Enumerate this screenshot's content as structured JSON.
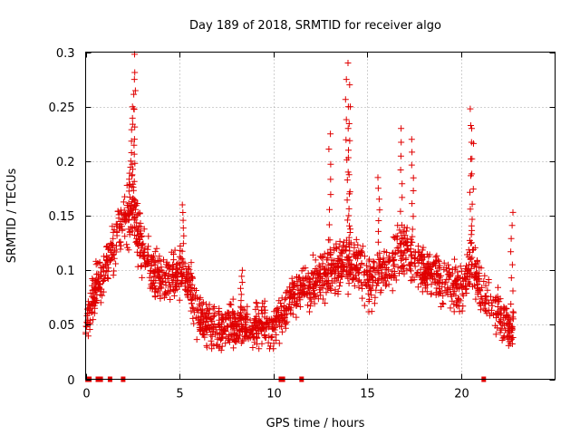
{
  "chart_data": {
    "type": "scatter",
    "title": "Day 189 of 2018, SRMTID for receiver algo",
    "xlabel": "GPS time / hours",
    "ylabel": "SRMTID / TECUs",
    "xlim": [
      0,
      25
    ],
    "ylim": [
      0,
      0.3
    ],
    "xticks": [
      0,
      5,
      10,
      15,
      20
    ],
    "xtick_labels": [
      "0",
      "5",
      "10",
      "15",
      "20"
    ],
    "yticks": [
      0,
      0.05,
      0.1,
      0.15,
      0.2,
      0.25,
      0.3
    ],
    "ytick_labels": [
      "0",
      "0.05",
      "0.1",
      "0.15",
      "0.2",
      "0.25",
      "0.3"
    ],
    "grid": true,
    "marker": "+",
    "series_color": "#e00000",
    "zero_markers": [
      0.1,
      0.15,
      0.2,
      0.65,
      0.7,
      0.75,
      0.8,
      1.3,
      2.0,
      10.4,
      10.5,
      11.5,
      21.2
    ],
    "series": [
      {
        "name": "SRMTID",
        "envelope": [
          {
            "x": 0.0,
            "y": 0.05
          },
          {
            "x": 0.5,
            "y": 0.08
          },
          {
            "x": 1.0,
            "y": 0.1
          },
          {
            "x": 1.5,
            "y": 0.12
          },
          {
            "x": 2.0,
            "y": 0.14
          },
          {
            "x": 2.5,
            "y": 0.155
          },
          {
            "x": 3.0,
            "y": 0.12
          },
          {
            "x": 3.5,
            "y": 0.1
          },
          {
            "x": 4.0,
            "y": 0.09
          },
          {
            "x": 4.5,
            "y": 0.095
          },
          {
            "x": 5.0,
            "y": 0.1
          },
          {
            "x": 5.5,
            "y": 0.09
          },
          {
            "x": 6.0,
            "y": 0.055
          },
          {
            "x": 7.0,
            "y": 0.045
          },
          {
            "x": 8.0,
            "y": 0.05
          },
          {
            "x": 9.0,
            "y": 0.05
          },
          {
            "x": 10.0,
            "y": 0.05
          },
          {
            "x": 10.5,
            "y": 0.06
          },
          {
            "x": 11.0,
            "y": 0.075
          },
          {
            "x": 12.0,
            "y": 0.085
          },
          {
            "x": 13.0,
            "y": 0.1
          },
          {
            "x": 14.0,
            "y": 0.11
          },
          {
            "x": 14.5,
            "y": 0.105
          },
          {
            "x": 15.0,
            "y": 0.09
          },
          {
            "x": 16.0,
            "y": 0.1
          },
          {
            "x": 17.0,
            "y": 0.12
          },
          {
            "x": 18.0,
            "y": 0.105
          },
          {
            "x": 19.0,
            "y": 0.09
          },
          {
            "x": 20.0,
            "y": 0.08
          },
          {
            "x": 20.5,
            "y": 0.11
          },
          {
            "x": 21.0,
            "y": 0.085
          },
          {
            "x": 22.0,
            "y": 0.06
          },
          {
            "x": 22.7,
            "y": 0.045
          }
        ],
        "x_range": [
          0.0,
          22.8
        ],
        "spread": 0.035,
        "point_count": 1900,
        "peaks": [
          {
            "x": 2.35,
            "y": 0.2
          },
          {
            "x": 2.5,
            "y": 0.25
          },
          {
            "x": 2.55,
            "y": 0.275
          },
          {
            "x": 2.6,
            "y": 0.298
          },
          {
            "x": 5.2,
            "y": 0.16
          },
          {
            "x": 8.3,
            "y": 0.1
          },
          {
            "x": 13.0,
            "y": 0.225
          },
          {
            "x": 13.9,
            "y": 0.275
          },
          {
            "x": 14.0,
            "y": 0.29
          },
          {
            "x": 14.05,
            "y": 0.25
          },
          {
            "x": 15.6,
            "y": 0.185
          },
          {
            "x": 16.8,
            "y": 0.23
          },
          {
            "x": 17.4,
            "y": 0.22
          },
          {
            "x": 20.5,
            "y": 0.248
          },
          {
            "x": 20.6,
            "y": 0.23
          },
          {
            "x": 22.7,
            "y": 0.153
          }
        ]
      }
    ]
  }
}
